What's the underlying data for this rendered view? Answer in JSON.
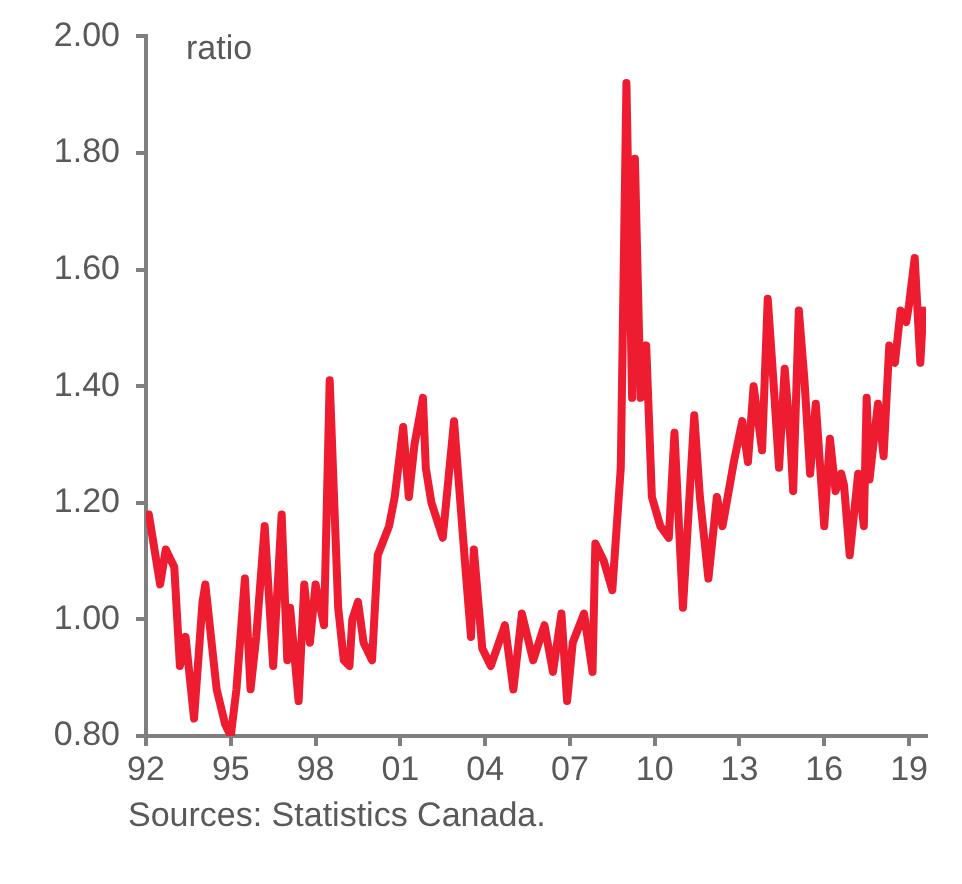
{
  "chart_data": {
    "type": "line",
    "ylabel": "ratio",
    "annotations": [
      "Sources: Statistics Canada."
    ],
    "x": [
      1992.1,
      1992.5,
      1992.7,
      1993.0,
      1993.2,
      1993.4,
      1993.7,
      1994.0,
      1994.1,
      1994.5,
      1994.8,
      1995.0,
      1995.2,
      1995.5,
      1995.7,
      1995.9,
      1996.2,
      1996.5,
      1996.8,
      1997.0,
      1997.1,
      1997.4,
      1997.6,
      1997.8,
      1998.0,
      1998.3,
      1998.5,
      1998.8,
      1999.0,
      1999.2,
      1999.3,
      1999.5,
      1999.7,
      2000.0,
      2000.2,
      2000.6,
      2000.8,
      2001.1,
      2001.3,
      2001.5,
      2001.8,
      2001.9,
      2002.1,
      2002.5,
      2002.9,
      2003.3,
      2003.5,
      2003.6,
      2003.9,
      2004.2,
      2004.7,
      2005.0,
      2005.3,
      2005.7,
      2006.1,
      2006.4,
      2006.7,
      2006.9,
      2007.1,
      2007.5,
      2007.8,
      2007.9,
      2008.2,
      2008.5,
      2008.8,
      2009.0,
      2009.2,
      2009.3,
      2009.5,
      2009.7,
      2009.9,
      2010.2,
      2010.5,
      2010.7,
      2011.0,
      2011.4,
      2011.6,
      2011.9,
      2012.2,
      2012.4,
      2012.8,
      2013.1,
      2013.3,
      2013.5,
      2013.8,
      2014.0,
      2014.2,
      2014.4,
      2014.6,
      2014.8,
      2014.9,
      2015.1,
      2015.3,
      2015.5,
      2015.7,
      2016.0,
      2016.2,
      2016.4,
      2016.6,
      2016.7,
      2016.9,
      2017.2,
      2017.4,
      2017.5,
      2017.6,
      2017.9,
      2018.1,
      2018.3,
      2018.5,
      2018.7,
      2018.9,
      2019.0,
      2019.2,
      2019.4,
      2019.5
    ],
    "series": [
      {
        "color": "#ee1c31",
        "values": [
          1.18,
          1.06,
          1.12,
          1.09,
          0.92,
          0.97,
          0.83,
          1.03,
          1.06,
          0.88,
          0.82,
          0.8,
          0.88,
          1.07,
          0.88,
          0.97,
          1.16,
          0.92,
          1.18,
          0.93,
          1.02,
          0.86,
          1.06,
          0.96,
          1.06,
          0.99,
          1.41,
          1.02,
          0.93,
          0.92,
          1.0,
          1.03,
          0.96,
          0.93,
          1.11,
          1.16,
          1.21,
          1.33,
          1.21,
          1.3,
          1.38,
          1.26,
          1.2,
          1.14,
          1.34,
          1.09,
          0.97,
          1.12,
          0.95,
          0.92,
          0.99,
          0.88,
          1.01,
          0.93,
          0.99,
          0.91,
          1.01,
          0.86,
          0.96,
          1.01,
          0.91,
          1.13,
          1.1,
          1.05,
          1.26,
          1.92,
          1.38,
          1.79,
          1.38,
          1.47,
          1.21,
          1.16,
          1.14,
          1.32,
          1.02,
          1.35,
          1.21,
          1.07,
          1.21,
          1.16,
          1.27,
          1.34,
          1.27,
          1.4,
          1.29,
          1.55,
          1.41,
          1.26,
          1.43,
          1.31,
          1.22,
          1.53,
          1.41,
          1.25,
          1.37,
          1.16,
          1.31,
          1.22,
          1.25,
          1.23,
          1.11,
          1.25,
          1.16,
          1.38,
          1.24,
          1.37,
          1.28,
          1.47,
          1.44,
          1.53,
          1.51,
          1.54,
          1.62,
          1.44,
          1.53
        ]
      }
    ],
    "xlim": [
      1992,
      2019.6
    ],
    "xticks": [
      {
        "value": 1992,
        "label": "92"
      },
      {
        "value": 1995,
        "label": "95"
      },
      {
        "value": 1998,
        "label": "98"
      },
      {
        "value": 2001,
        "label": "01"
      },
      {
        "value": 2004,
        "label": "04"
      },
      {
        "value": 2007,
        "label": "07"
      },
      {
        "value": 2010,
        "label": "10"
      },
      {
        "value": 2013,
        "label": "13"
      },
      {
        "value": 2016,
        "label": "16"
      },
      {
        "value": 2019,
        "label": "19"
      }
    ],
    "ylim": [
      0.8,
      2.0
    ],
    "yticks": [
      {
        "value": 0.8,
        "label": "0.80"
      },
      {
        "value": 1.0,
        "label": "1.00"
      },
      {
        "value": 1.2,
        "label": "1.20"
      },
      {
        "value": 1.4,
        "label": "1.40"
      },
      {
        "value": 1.6,
        "label": "1.60"
      },
      {
        "value": 1.8,
        "label": "1.80"
      },
      {
        "value": 2.0,
        "label": "2.00"
      }
    ],
    "grid": false,
    "legend": false,
    "marker": "none",
    "line_style": "solid"
  }
}
